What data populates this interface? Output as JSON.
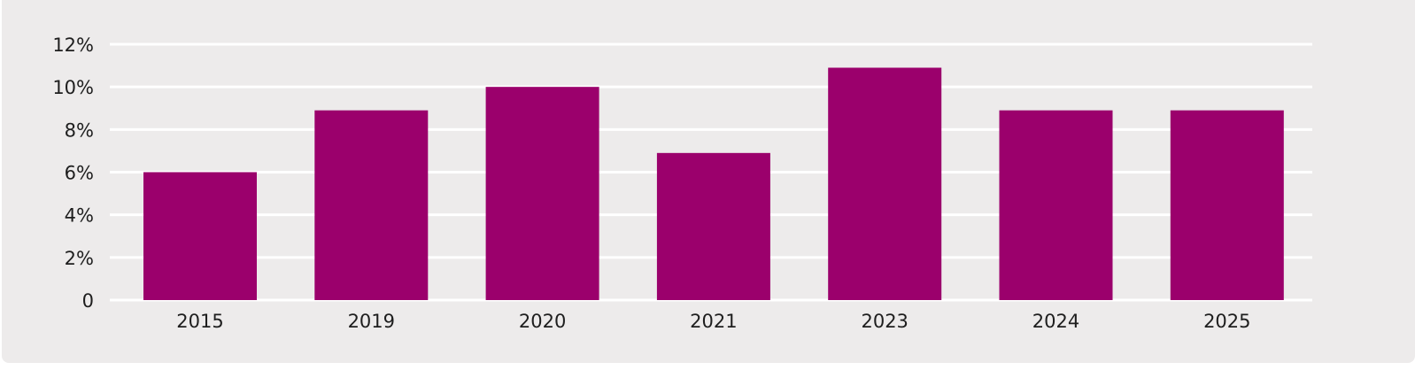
{
  "chart_data": {
    "type": "bar",
    "title": "",
    "xlabel": "",
    "ylabel": "",
    "categories": [
      "2015",
      "2019",
      "2020",
      "2021",
      "2023",
      "2024",
      "2025"
    ],
    "values": [
      6,
      8.9,
      10,
      6.9,
      10.9,
      8.9,
      8.9
    ],
    "ylim": [
      0,
      12
    ],
    "yticks": [
      0,
      2,
      4,
      6,
      8,
      10,
      12
    ],
    "ytick_labels": [
      "0",
      "2%",
      "4%",
      "6%",
      "8%",
      "10%",
      "12%"
    ],
    "grid": true,
    "bar_color": "#9b006c",
    "background_color": "#edebeb",
    "grid_color": "#ffffff"
  }
}
